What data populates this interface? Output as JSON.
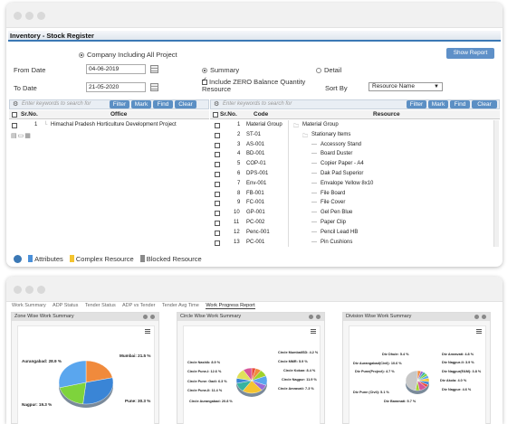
{
  "stock_register": {
    "title": "Inventory - Stock Register",
    "company_option": "Company Including All Project",
    "show_report": "Show Report",
    "from_date_label": "From Date",
    "from_date": "04-06-2019",
    "to_date_label": "To Date",
    "to_date": "21-05-2020",
    "summary_label": "Summary",
    "detail_label": "Detail",
    "include_zero_label": "Include ZERO Balance Quantity Resource",
    "sort_by_label": "Sort By",
    "sort_by_value": "Resource Name",
    "search_placeholder": "Enter keywords to search for",
    "filter": "Filter",
    "mark": "Mark",
    "find": "Find",
    "clear": "Clear",
    "left_grid": {
      "col_sr": "Sr.No.",
      "col_office": "Office",
      "rows": [
        {
          "sr": "1",
          "office": "Himachal Pradesh Horticulture Development Project"
        }
      ]
    },
    "right_grid": {
      "col_sr": "Sr.No.",
      "col_code": "Code",
      "col_resource": "Resource",
      "rows": [
        {
          "sr": "1",
          "code": "Material Group",
          "resource": "Material Group",
          "level": 0
        },
        {
          "sr": "2",
          "code": "ST-01",
          "resource": "Stationary Items",
          "level": 1
        },
        {
          "sr": "3",
          "code": "AS-001",
          "resource": "Accessory Stand",
          "level": 2
        },
        {
          "sr": "4",
          "code": "BD-001",
          "resource": "Board Duster",
          "level": 2
        },
        {
          "sr": "5",
          "code": "COP-01",
          "resource": "Copier Paper - A4",
          "level": 2
        },
        {
          "sr": "6",
          "code": "DPS-001",
          "resource": "Dak Pad Superior",
          "level": 2
        },
        {
          "sr": "7",
          "code": "Env-001",
          "resource": "Envalope Yellow 8x10",
          "level": 2
        },
        {
          "sr": "8",
          "code": "FB-001",
          "resource": "File Board",
          "level": 2
        },
        {
          "sr": "9",
          "code": "FC-001",
          "resource": "File Cover",
          "level": 2
        },
        {
          "sr": "10",
          "code": "GP-001",
          "resource": "Gel Pen Blue",
          "level": 2
        },
        {
          "sr": "11",
          "code": "PC-002",
          "resource": "Paper Clip",
          "level": 2
        },
        {
          "sr": "12",
          "code": "Penc-001",
          "resource": "Pencil Lead HB",
          "level": 2
        },
        {
          "sr": "13",
          "code": "PC-001",
          "resource": "Pin Cushions",
          "level": 2
        }
      ]
    },
    "legend": {
      "attributes": "Attributes",
      "complex": "Complex Resource",
      "blocked": "Blocked Resource"
    },
    "colors": {
      "accent": "#3b78b5",
      "attributes": "#4a90d9",
      "complex": "#f4c430",
      "blocked": "#8a8a8a"
    }
  },
  "work_progress": {
    "tabs": [
      "Work Summary",
      "ADP Status",
      "Tender Status",
      "ADP vs Tender",
      "Tender Avg Time",
      "Work Progress Report"
    ],
    "active_tab": "Work Progress Report",
    "panels": [
      {
        "title": "Zone Wise Work Summary",
        "chart_data": {
          "type": "pie",
          "title": "",
          "slices": [
            {
              "label": "Mumbai: 21.5 %",
              "value": 21.5,
              "color": "#f08a3c"
            },
            {
              "label": "Pune: 30.3 %",
              "value": 30.3,
              "color": "#3a85d6"
            },
            {
              "label": "Nagpur: 19.3 %",
              "value": 19.3,
              "color": "#7ed33c"
            },
            {
              "label": "Aurangabad: 28.9 %",
              "value": 28.9,
              "color": "#5aa6ee"
            }
          ]
        }
      },
      {
        "title": "Circle Wise Work Summary",
        "chart_data": {
          "type": "pie",
          "title": "",
          "slices": [
            {
              "label": "Circle MumbaiISD: 4.2 %",
              "value": 4.2,
              "color": "#e94b3c"
            },
            {
              "label": "Circle MMR: 5.9 %",
              "value": 5.9,
              "color": "#f08a3c"
            },
            {
              "label": "Circle Kokan: 8.4 %",
              "value": 8.4,
              "color": "#a0d22c"
            },
            {
              "label": "Circle Nagpur: 11.9 %",
              "value": 11.9,
              "color": "#5aa6ee"
            },
            {
              "label": "Circle Amravati: 7.3 %",
              "value": 7.3,
              "color": "#9a6ad6"
            },
            {
              "label": "Circle Aurangabad: 20.8 %",
              "value": 20.8,
              "color": "#f4c430"
            },
            {
              "label": "Circle Pune-II: 11.4 %",
              "value": 11.4,
              "color": "#37b3a0"
            },
            {
              "label": "Circle Pune: Gadi: 6.3 %",
              "value": 6.3,
              "color": "#3a85d6"
            },
            {
              "label": "Circle Pune-I: 12.6 %",
              "value": 12.6,
              "color": "#e0e05a"
            },
            {
              "label": "Circle Nashik: 8.9 %",
              "value": 8.9,
              "color": "#d6569a"
            }
          ]
        }
      },
      {
        "title": "Division Wise Work Summary",
        "chart_data": {
          "type": "pie",
          "title": "",
          "slices": [
            {
              "label": "Div Amravati: 4.8 %",
              "value": 4.8,
              "color": "#f08a3c"
            },
            {
              "label": "Div Nagpur-II: 3.9 %",
              "value": 3.9,
              "color": "#9a6ad6"
            },
            {
              "label": "Div Nagpur(E&M): 3.8 %",
              "value": 3.8,
              "color": "#37b3a0"
            },
            {
              "label": "Div Akola: 4.0 %",
              "value": 4.0,
              "color": "#7ed33c"
            },
            {
              "label": "Div Nagpur: 4.6 %",
              "value": 4.6,
              "color": "#5aa6ee"
            },
            {
              "label": "Div Baramati: 5.7 %",
              "value": 5.7,
              "color": "#f4c430"
            },
            {
              "label": "Div Pune (Civil): 5.1 %",
              "value": 5.1,
              "color": "#3a85d6"
            },
            {
              "label": "Div Pune(Project): 4.7 %",
              "value": 4.7,
              "color": "#e94b3c"
            },
            {
              "label": "Div Aurangabad(Civil): 10.6 %",
              "value": 10.6,
              "color": "#d6569a"
            },
            {
              "label": "Div Dhule: 5.4 %",
              "value": 5.4,
              "color": "#a0d22c"
            },
            {
              "label": "Others",
              "value": 47.4,
              "color": "#c8c8c8"
            }
          ]
        }
      }
    ]
  }
}
